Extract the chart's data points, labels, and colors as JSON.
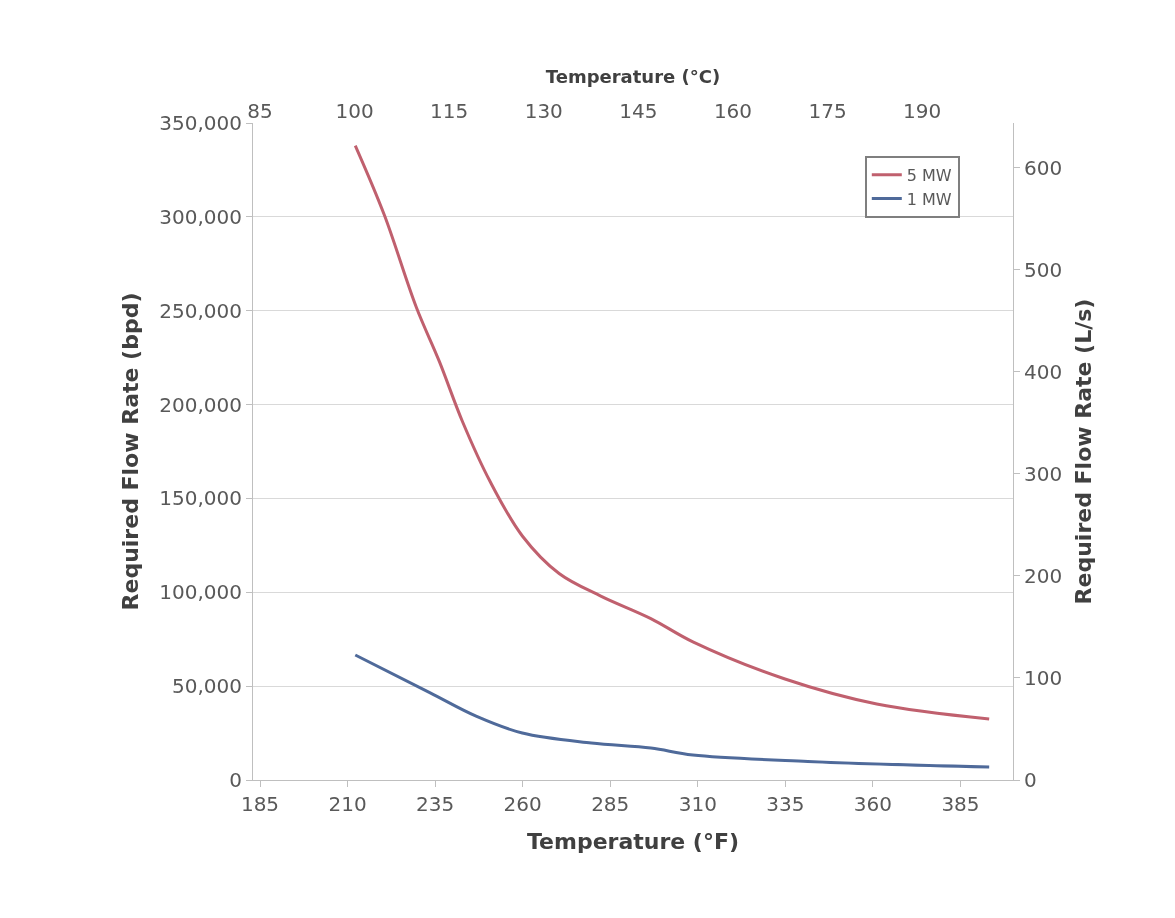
{
  "chart_data": {
    "type": "line",
    "xlabel": "Temperature (°F)",
    "ylabel": "Required Flow Rate (bpd)",
    "y2label": "Required Flow Rate (L/s)",
    "x2label": "Temperature (°C)",
    "xlim": [
      183,
      400
    ],
    "xticks": [
      185,
      210,
      235,
      260,
      285,
      310,
      335,
      360,
      385
    ],
    "x2lim": [
      83.9,
      204.4
    ],
    "x2ticks": [
      85,
      100,
      115,
      130,
      145,
      160,
      175,
      190
    ],
    "ylim": [
      0,
      350000
    ],
    "yticks": [
      {
        "value": 0,
        "label": "0"
      },
      {
        "value": 50000,
        "label": "50,000"
      },
      {
        "value": 100000,
        "label": "100,000"
      },
      {
        "value": 150000,
        "label": "150,000"
      },
      {
        "value": 200000,
        "label": "200,000"
      },
      {
        "value": 250000,
        "label": "250,000"
      },
      {
        "value": 300000,
        "label": "300,000"
      },
      {
        "value": 350000,
        "label": "350,000"
      }
    ],
    "y2lim": [
      0,
      644
    ],
    "y2ticks": [
      0,
      100,
      200,
      300,
      400,
      500,
      600
    ],
    "grid": "y",
    "legend": "top right",
    "marker": "none",
    "line_style": "solid",
    "series": [
      {
        "name": "5 MW",
        "color": "#c0606e",
        "x": [
          212.2,
          220.5,
          229.6,
          236.2,
          242.8,
          250.7,
          259.9,
          270.4,
          282.3,
          296.6,
          308.6,
          334.9,
          361.1,
          393.2
        ],
        "values": [
          338000,
          301000,
          252000,
          223000,
          191000,
          159000,
          130000,
          110000,
          98000,
          86000,
          73600,
          53800,
          40500,
          32500
        ]
      },
      {
        "name": "1 MW",
        "color": "#4f6a9a",
        "x": [
          212.2,
          233.6,
          246.7,
          259.9,
          279.6,
          296.6,
          308.6,
          341.4,
          393.2
        ],
        "values": [
          66600,
          46400,
          34000,
          25000,
          19700,
          17000,
          13300,
          9900,
          6900
        ]
      }
    ]
  }
}
